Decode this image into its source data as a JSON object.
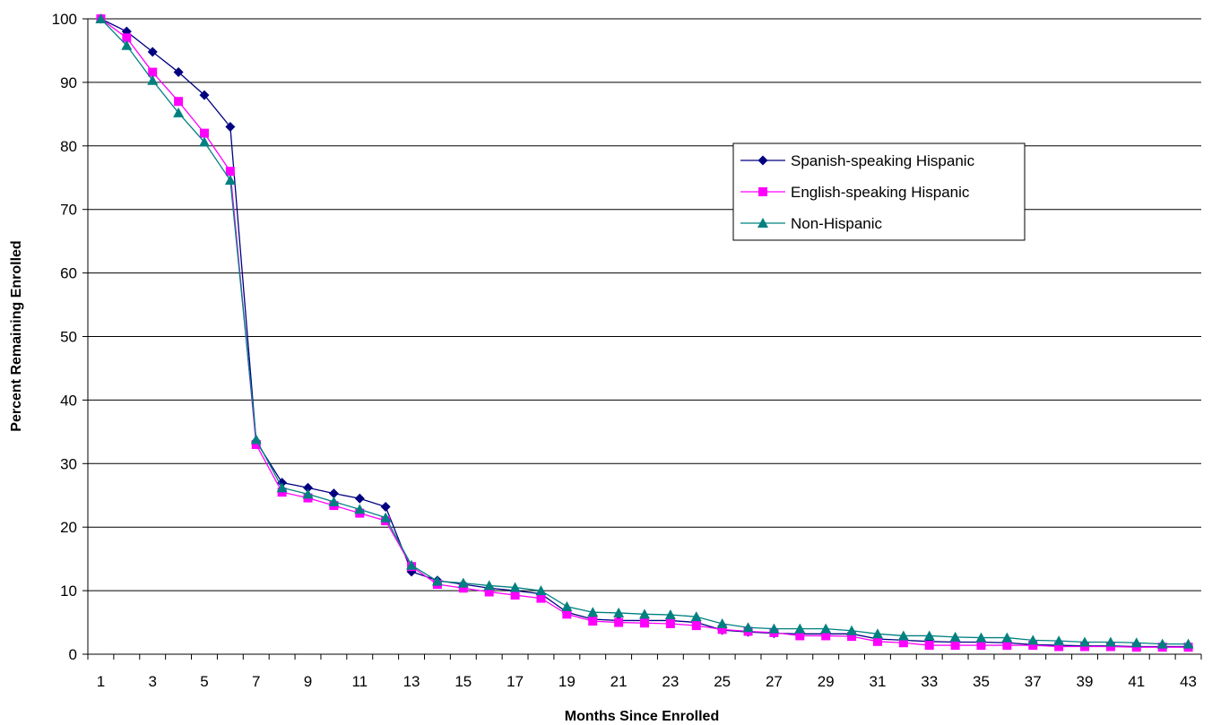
{
  "chart_data": {
    "type": "line",
    "title": "",
    "xlabel": "Months Since Enrolled",
    "ylabel": "Percent Remaining Enrolled",
    "ylim": [
      0,
      100
    ],
    "yticks": [
      "0",
      "10",
      "20",
      "30",
      "40",
      "50",
      "60",
      "70",
      "80",
      "90",
      "100"
    ],
    "x": [
      1,
      2,
      3,
      4,
      5,
      6,
      7,
      8,
      9,
      10,
      11,
      12,
      13,
      14,
      15,
      16,
      17,
      18,
      19,
      20,
      21,
      22,
      23,
      24,
      25,
      26,
      27,
      28,
      29,
      30,
      31,
      32,
      33,
      34,
      35,
      36,
      37,
      38,
      39,
      40,
      41,
      42,
      43
    ],
    "xtick_labels": [
      "1",
      "3",
      "5",
      "7",
      "9",
      "11",
      "13",
      "15",
      "17",
      "19",
      "21",
      "23",
      "25",
      "27",
      "29",
      "31",
      "33",
      "35",
      "37",
      "39",
      "41",
      "43"
    ],
    "grid": "horizontal",
    "legend_position": "right",
    "series": [
      {
        "name": "Spanish-speaking Hispanic",
        "color": "#000080",
        "marker": "diamond",
        "values": [
          100,
          98,
          94.8,
          91.6,
          88,
          83,
          33.5,
          27,
          26.2,
          25.3,
          24.5,
          23.2,
          13,
          11.6,
          11,
          10.4,
          10,
          9.5,
          6.6,
          5.5,
          5.3,
          5.3,
          5.3,
          5,
          3.8,
          3.5,
          3.3,
          3.2,
          3.2,
          3.2,
          2.4,
          2.2,
          2,
          1.9,
          1.9,
          1.8,
          1.5,
          1.4,
          1.3,
          1.3,
          1.2,
          1.2,
          1.2
        ]
      },
      {
        "name": "English-speaking Hispanic",
        "color": "#FF00FF",
        "marker": "square",
        "values": [
          100,
          97,
          91.6,
          87,
          82,
          76,
          33,
          25.5,
          24.6,
          23.4,
          22.2,
          21,
          13.8,
          11,
          10.4,
          9.8,
          9.3,
          8.8,
          6.3,
          5.2,
          5,
          4.9,
          4.8,
          4.5,
          3.9,
          3.6,
          3.4,
          2.9,
          2.9,
          2.8,
          2,
          1.8,
          1.4,
          1.4,
          1.4,
          1.4,
          1.4,
          1.2,
          1.2,
          1.2,
          1.1,
          1.1,
          1.1
        ]
      },
      {
        "name": "Non-Hispanic",
        "color": "#008080",
        "marker": "triangle",
        "values": [
          100,
          95.8,
          90.3,
          85.2,
          80.6,
          74.6,
          33.8,
          26.2,
          25.2,
          24,
          22.8,
          21.5,
          14,
          11.5,
          11.2,
          10.8,
          10.5,
          10,
          7.5,
          6.6,
          6.5,
          6.3,
          6.2,
          5.9,
          4.8,
          4.2,
          4,
          4,
          4,
          3.7,
          3.2,
          2.9,
          2.9,
          2.7,
          2.6,
          2.6,
          2.2,
          2.1,
          1.9,
          1.9,
          1.8,
          1.6,
          1.6
        ]
      }
    ]
  }
}
